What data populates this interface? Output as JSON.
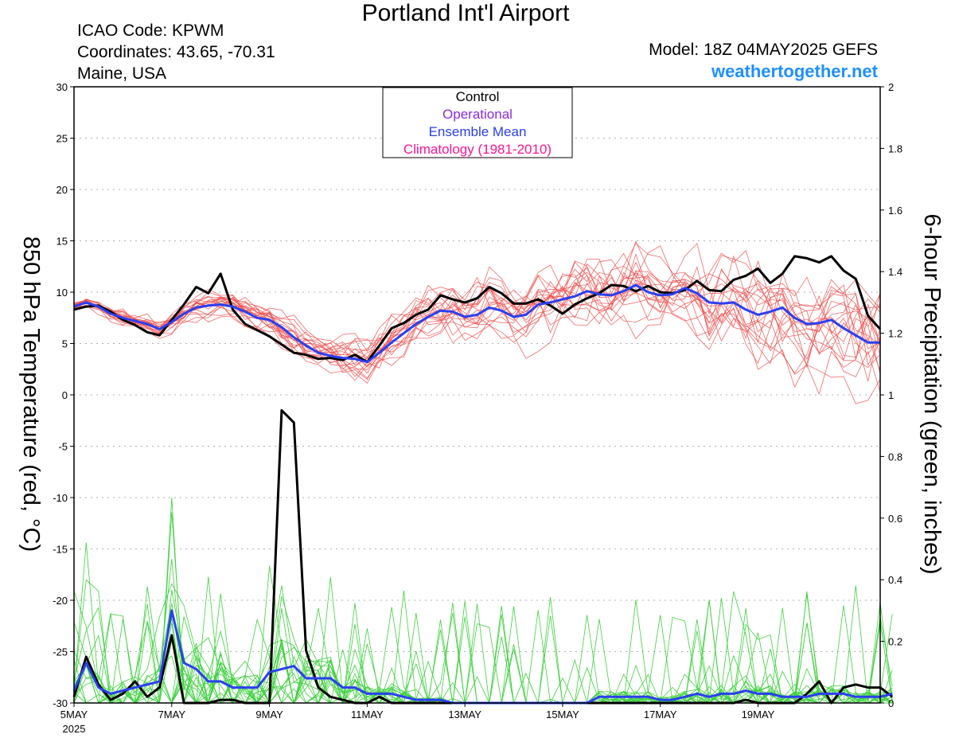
{
  "header": {
    "title": "Portland Int'l Airport",
    "icao": "ICAO Code: KPWM",
    "coords": "Coordinates: 43.65, -70.31",
    "region": "Maine, USA",
    "model": "Model: 18Z 04MAY2025 GEFS",
    "site": "weathertogether.net"
  },
  "colors": {
    "control": "#000000",
    "operational": "#8a2be2",
    "mean": "#2b3ff0",
    "climatology": "#ff1493",
    "temp_members": "#f05050",
    "precip_members": "#3ed03e",
    "brand": "#1e90ff"
  },
  "chart_data": {
    "type": "line",
    "title": "Portland Int'l Airport",
    "xlabel": "",
    "ylabel": "850 hPa Temperature (red, °C)",
    "y2label": "6-hour Precipitation (green, inches)",
    "ylim": [
      -30,
      30
    ],
    "y2lim": [
      0,
      2
    ],
    "grid": true,
    "yticks": [
      "30",
      "25",
      "20",
      "15",
      "10",
      "5",
      "0",
      "-5",
      "-10",
      "-15",
      "-20",
      "-25",
      "-30"
    ],
    "y2ticks": [
      "2",
      "1.8",
      "1.6",
      "1.4",
      "1.2",
      "1",
      "0.8",
      "0.6",
      "0.4",
      "0.2",
      "0"
    ],
    "xtick_labels": [
      "5MAY",
      "7MAY",
      "9MAY",
      "11MAY",
      "13MAY",
      "15MAY",
      "17MAY",
      "19MAY"
    ],
    "xtick_year": "2025",
    "x_start": "2025-05-05 00Z",
    "x_step_hours": 6,
    "legend": {
      "placement": "top-center",
      "entries": [
        "Control",
        "Operational",
        "Ensemble Mean",
        "Climatology (1981-2010)"
      ]
    },
    "series": [
      {
        "name": "Control",
        "axis": "temperature",
        "values": [
          8.3,
          8.6,
          8.7,
          8.1,
          7.3,
          6.8,
          6.1,
          5.8,
          7.3,
          8.8,
          10.5,
          9.9,
          11.8,
          8.3,
          6.9,
          6.3,
          5.7,
          4.9,
          4.1,
          3.9,
          3.5,
          3.6,
          3.4,
          3.9,
          3.2,
          4.8,
          6.5,
          7.0,
          7.8,
          8.3,
          9.7,
          9.3,
          9.0,
          9.4,
          10.5,
          9.9,
          8.9,
          8.9,
          9.3,
          8.7,
          7.9,
          8.8,
          9.4,
          9.9,
          10.7,
          10.6,
          10.1,
          10.6,
          10.0,
          9.9,
          10.2,
          11.1,
          10.2,
          10.1,
          11.2,
          11.6,
          12.3,
          10.9,
          11.8,
          13.5,
          13.3,
          12.9,
          13.5,
          12.1,
          11.3,
          7.7,
          6.4
        ]
      },
      {
        "name": "Ensemble Mean",
        "axis": "temperature",
        "values": [
          8.6,
          9.0,
          8.6,
          7.9,
          7.5,
          7.2,
          6.9,
          6.4,
          7.1,
          7.9,
          8.5,
          8.7,
          8.8,
          8.6,
          8.1,
          7.5,
          7.3,
          6.6,
          5.6,
          4.8,
          4.1,
          3.8,
          3.6,
          3.5,
          3.2,
          4.1,
          5.1,
          6.0,
          6.9,
          7.6,
          8.2,
          8.1,
          7.6,
          7.8,
          8.5,
          8.2,
          7.6,
          7.8,
          8.8,
          9.0,
          9.3,
          9.6,
          10.1,
          9.8,
          9.7,
          10.1,
          10.7,
          10.0,
          9.7,
          9.8,
          10.4,
          9.9,
          9.0,
          8.9,
          9.0,
          8.3,
          7.8,
          8.1,
          8.5,
          7.5,
          6.9,
          7.0,
          7.3,
          6.5,
          5.8,
          5.1,
          5.1
        ]
      },
      {
        "name": "Control",
        "axis": "precipitation",
        "values": [
          0.02,
          0.15,
          0.06,
          0.01,
          0.03,
          0.07,
          0.02,
          0.05,
          0.22,
          0.0,
          0.0,
          0.0,
          0.01,
          0.01,
          0.0,
          0.0,
          0.0,
          0.95,
          0.91,
          0.17,
          0.05,
          0.02,
          0.01,
          0.0,
          0.0,
          0.02,
          0.0,
          0.0,
          0.0,
          0.0,
          0.0,
          0.0,
          0.0,
          0.0,
          0.0,
          0.0,
          0.0,
          0.0,
          0.0,
          0.0,
          0.0,
          0.0,
          0.0,
          0.0,
          0.0,
          0.0,
          0.0,
          0.0,
          0.0,
          0.0,
          0.0,
          0.0,
          0.0,
          0.0,
          0.0,
          0.01,
          0.0,
          0.0,
          0.0,
          0.0,
          0.03,
          0.07,
          0.0,
          0.05,
          0.06,
          0.05,
          0.05,
          0.02
        ]
      },
      {
        "name": "Ensemble Mean",
        "axis": "precipitation",
        "values": [
          0.04,
          0.13,
          0.05,
          0.03,
          0.04,
          0.05,
          0.06,
          0.07,
          0.3,
          0.13,
          0.11,
          0.07,
          0.07,
          0.05,
          0.05,
          0.05,
          0.1,
          0.11,
          0.12,
          0.08,
          0.08,
          0.08,
          0.05,
          0.05,
          0.03,
          0.03,
          0.03,
          0.02,
          0.01,
          0.01,
          0.01,
          0.0,
          0.0,
          0.0,
          0.0,
          0.0,
          0.0,
          0.0,
          0.0,
          0.0,
          0.0,
          0.0,
          0.0,
          0.02,
          0.02,
          0.02,
          0.02,
          0.02,
          0.01,
          0.01,
          0.02,
          0.03,
          0.02,
          0.03,
          0.03,
          0.04,
          0.03,
          0.03,
          0.02,
          0.02,
          0.02,
          0.03,
          0.03,
          0.03,
          0.02,
          0.02,
          0.02,
          0.03
        ]
      }
    ]
  }
}
